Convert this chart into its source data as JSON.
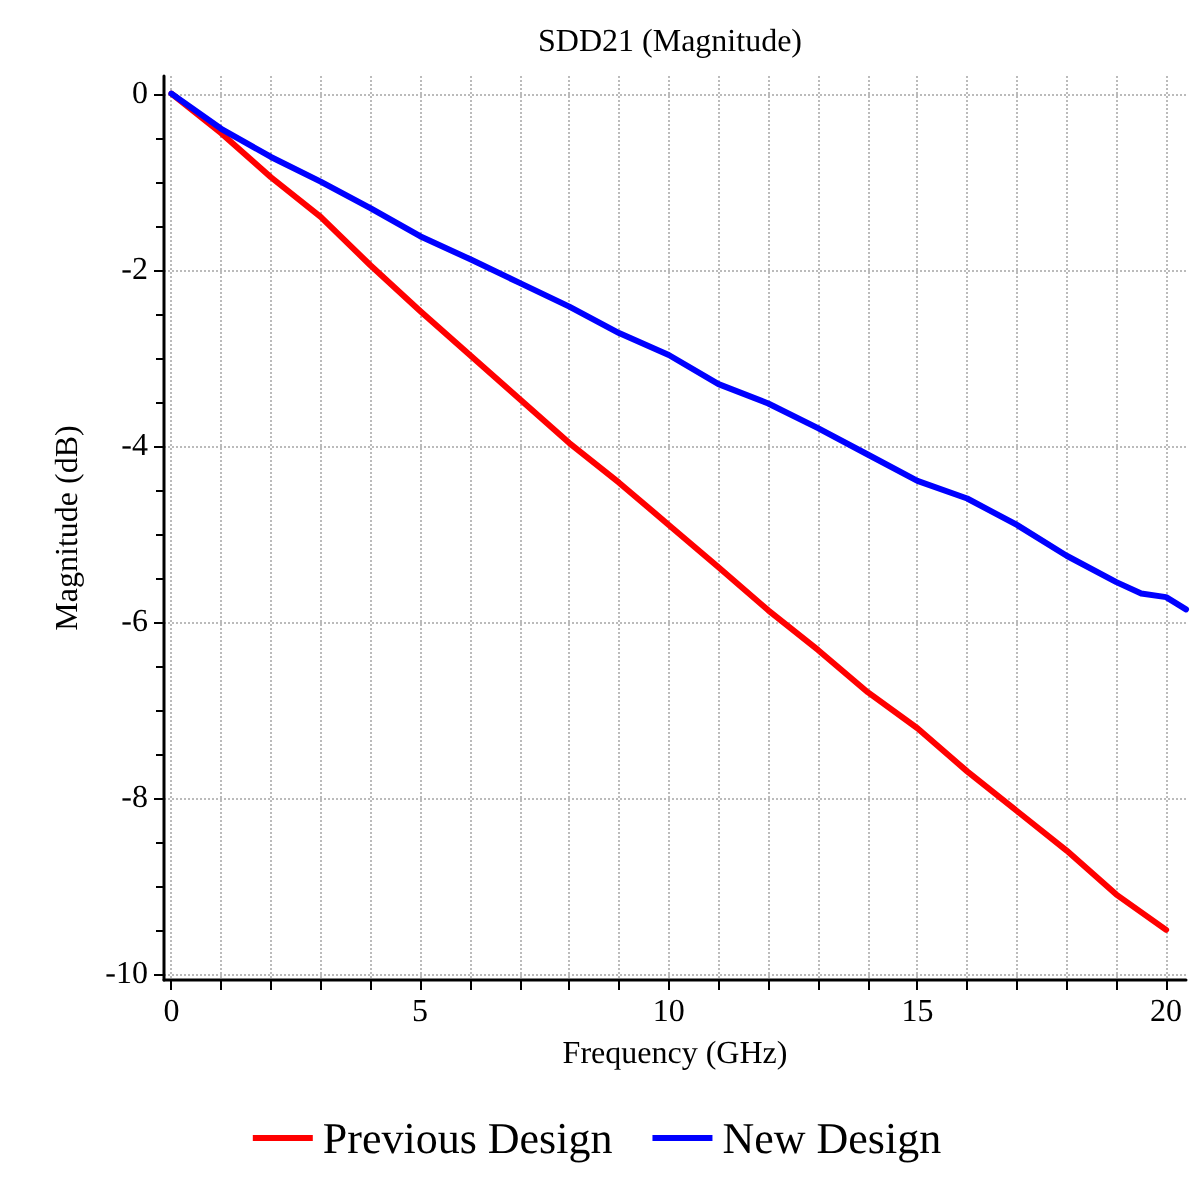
{
  "chart_data": {
    "type": "line",
    "title": "SDD21 (Magnitude)",
    "xlabel": "Frequency (GHz)",
    "ylabel": "Magnitude (dB)",
    "xlim": [
      -0.15,
      20.4
    ],
    "ylim": [
      -10.07,
      0.2
    ],
    "xticks": [
      0,
      {
        "value": 1,
        "label": null
      },
      {
        "value": 2,
        "label": null
      },
      {
        "value": 3,
        "label": null
      },
      {
        "value": 4,
        "label": null
      },
      5,
      {
        "value": 6,
        "label": null
      },
      {
        "value": 7,
        "label": null
      },
      {
        "value": 8,
        "label": null
      },
      {
        "value": 9,
        "label": null
      },
      10,
      {
        "value": 11,
        "label": null
      },
      {
        "value": 12,
        "label": null
      },
      {
        "value": 13,
        "label": null
      },
      {
        "value": 14,
        "label": null
      },
      15,
      {
        "value": 16,
        "label": null
      },
      {
        "value": 17,
        "label": null
      },
      {
        "value": 18,
        "label": null
      },
      {
        "value": 19,
        "label": null
      },
      20
    ],
    "yticks": [
      0,
      -2,
      -4,
      -6,
      -8,
      -10
    ],
    "grid": true,
    "legend": "bottom",
    "marker": "none",
    "line_style": "solid",
    "series": [
      {
        "name": "Previous Design",
        "color": "#ff0000",
        "x": [
          0,
          1,
          2,
          3,
          4,
          5,
          6,
          7,
          8,
          9,
          10,
          11,
          12,
          13,
          14,
          15,
          16,
          17,
          18,
          19,
          20
        ],
        "values": [
          0,
          -0.45,
          -0.95,
          -1.4,
          -1.95,
          -2.47,
          -2.97,
          -3.47,
          -3.97,
          -4.42,
          -4.9,
          -5.38,
          -5.87,
          -6.32,
          -6.8,
          -7.21,
          -7.7,
          -8.15,
          -8.6,
          -9.1,
          -9.5
        ]
      },
      {
        "name": "New Design",
        "color": "#0000ff",
        "x": [
          0,
          1,
          2,
          3,
          4,
          5,
          6,
          7,
          8,
          9,
          10,
          11,
          12,
          13,
          14,
          15,
          16,
          17,
          18,
          19,
          19.5,
          20,
          20.4
        ],
        "values": [
          0,
          -0.4,
          -0.72,
          -1.0,
          -1.3,
          -1.62,
          -1.88,
          -2.15,
          -2.42,
          -2.72,
          -2.97,
          -3.3,
          -3.52,
          -3.8,
          -4.1,
          -4.4,
          -4.6,
          -4.9,
          -5.25,
          -5.55,
          -5.68,
          -5.72,
          -5.86
        ]
      }
    ]
  }
}
